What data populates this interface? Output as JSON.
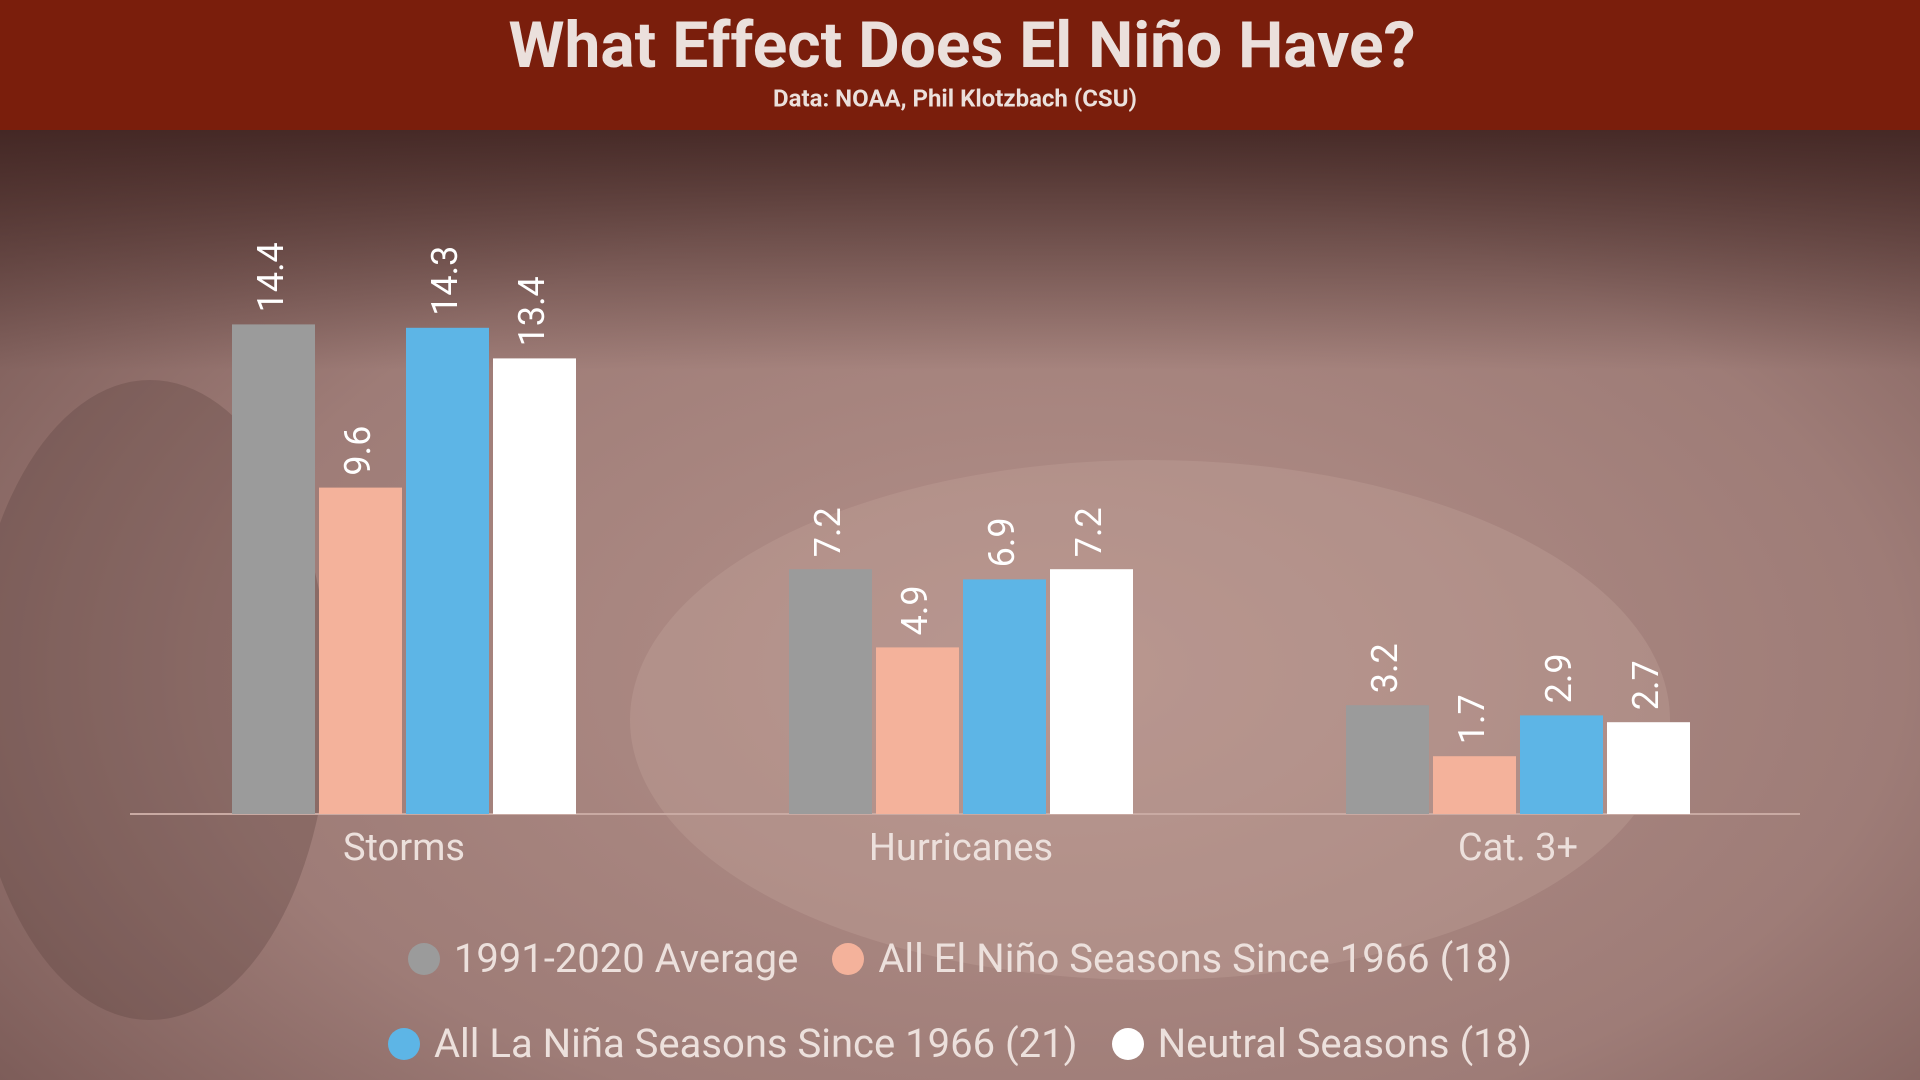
{
  "chart_data": {
    "type": "bar",
    "title": "What Effect Does El Niño Have?",
    "subtitle": "Data: NOAA, Phil Klotzbach (CSU)",
    "categories": [
      "Storms",
      "Hurricanes",
      "Cat. 3+"
    ],
    "series": [
      {
        "name": "1991-2020 Average",
        "color": "#9b9b9b",
        "values": [
          14.4,
          7.2,
          3.2
        ]
      },
      {
        "name": "All El Niño Seasons Since 1966 (18)",
        "color": "#f4b29b",
        "values": [
          9.6,
          4.9,
          1.7
        ]
      },
      {
        "name": "All La Niña Seasons Since 1966 (21)",
        "color": "#5db5e6",
        "values": [
          14.3,
          6.9,
          2.9
        ]
      },
      {
        "name": "Neutral Seasons (18)",
        "color": "#ffffff",
        "values": [
          13.4,
          7.2,
          2.7
        ]
      }
    ]
  }
}
